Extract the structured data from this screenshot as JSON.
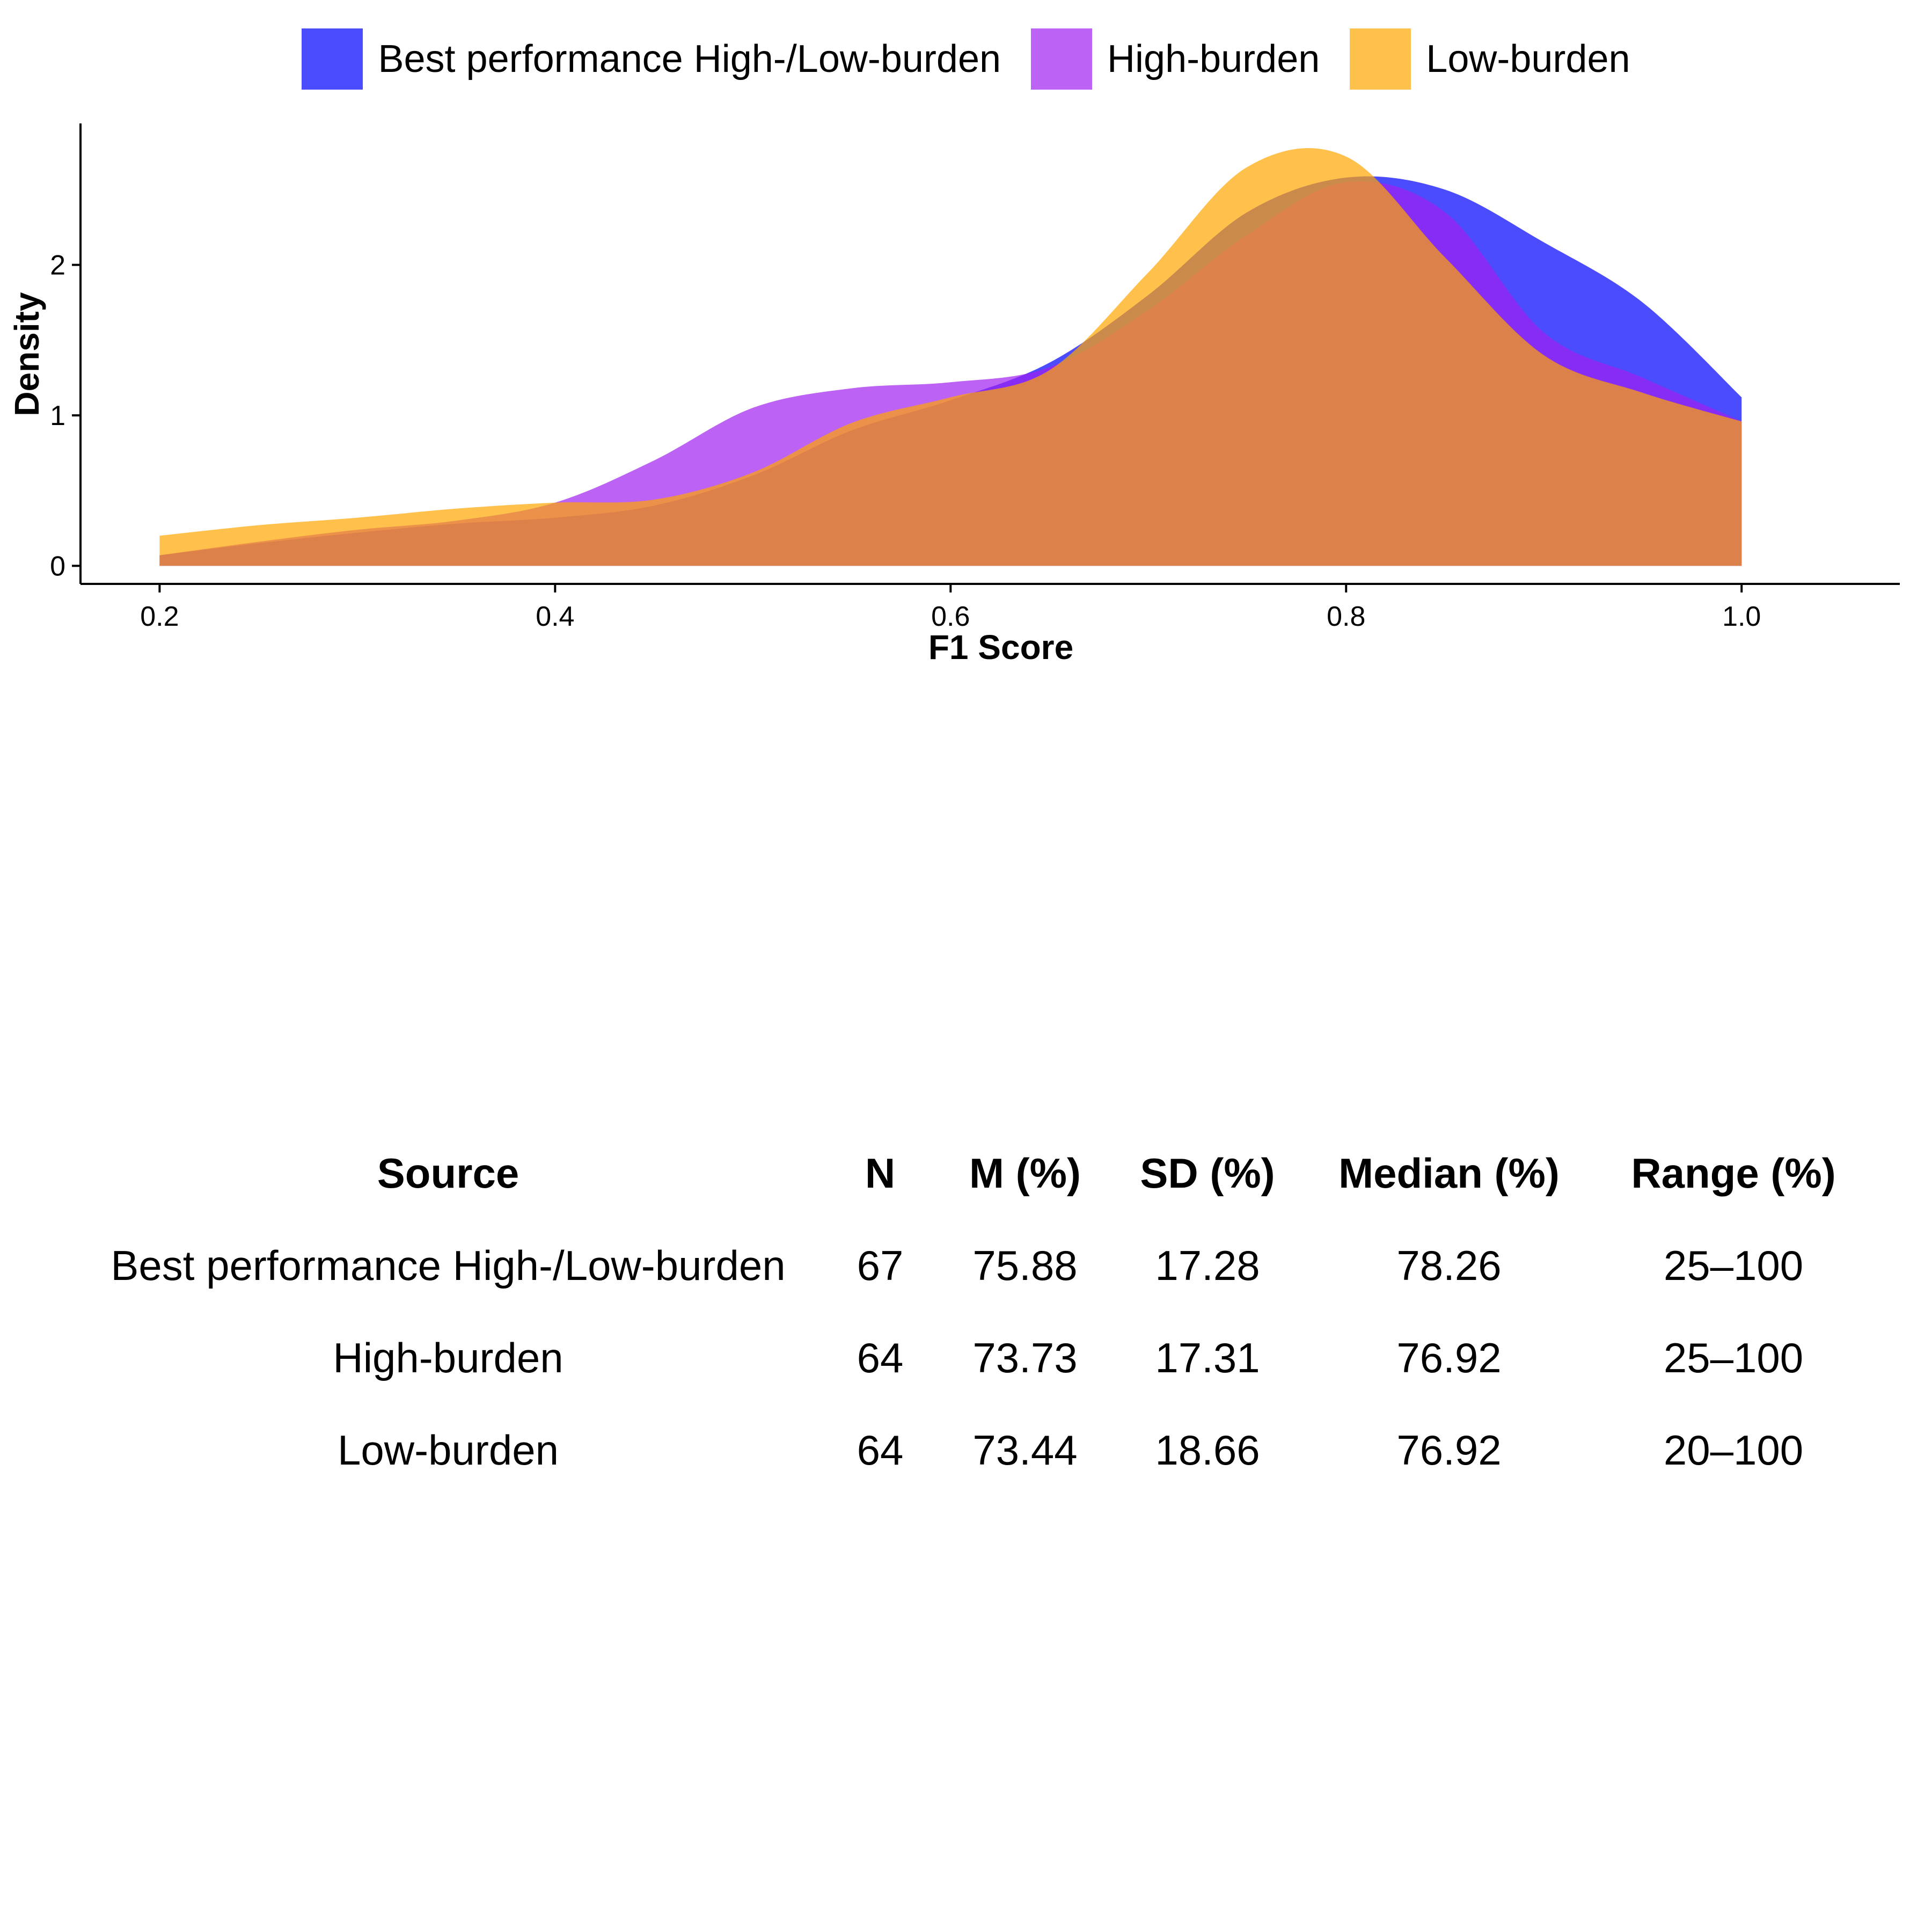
{
  "chart_data": {
    "type": "area",
    "xlabel": "F1 Score",
    "ylabel": "Density",
    "xlim": [
      0.16,
      1.08
    ],
    "ylim": [
      -0.12,
      2.94
    ],
    "x_ticks": [
      0.2,
      0.4,
      0.6,
      0.8,
      1.0
    ],
    "x_tick_labels": [
      "0.2",
      "0.4",
      "0.6",
      "0.8",
      "1.0"
    ],
    "y_ticks": [
      0,
      1,
      2
    ],
    "y_tick_labels": [
      "0",
      "1",
      "2"
    ],
    "grid": false,
    "legend_position": "top",
    "x": [
      0.2,
      0.25,
      0.3,
      0.35,
      0.4,
      0.45,
      0.5,
      0.55,
      0.6,
      0.65,
      0.7,
      0.75,
      0.8,
      0.85,
      0.9,
      0.95,
      1.0
    ],
    "series": [
      {
        "name": "Best performance High-/Low-burden",
        "color": "#0000FF",
        "opacity": 0.7,
        "values": [
          0.07,
          0.15,
          0.22,
          0.28,
          0.32,
          0.4,
          0.6,
          0.9,
          1.1,
          1.35,
          1.8,
          2.35,
          2.58,
          2.5,
          2.15,
          1.75,
          1.12
        ]
      },
      {
        "name": "High-burden",
        "color": "#A020F0",
        "opacity": 0.7,
        "values": [
          0.07,
          0.16,
          0.24,
          0.3,
          0.42,
          0.7,
          1.05,
          1.18,
          1.22,
          1.32,
          1.7,
          2.2,
          2.55,
          2.35,
          1.55,
          1.25,
          0.96
        ]
      },
      {
        "name": "Low-burden",
        "color": "#FFA500",
        "opacity": 0.7,
        "values": [
          0.2,
          0.27,
          0.32,
          0.38,
          0.42,
          0.44,
          0.62,
          0.95,
          1.12,
          1.3,
          1.95,
          2.65,
          2.72,
          2.05,
          1.4,
          1.15,
          0.96
        ]
      }
    ]
  },
  "table": {
    "headers": [
      "Source",
      "N",
      "M (%)",
      "SD (%)",
      "Median (%)",
      "Range (%)"
    ],
    "rows": [
      [
        "Best performance High-/Low-burden",
        "67",
        "75.88",
        "17.28",
        "78.26",
        "25–100"
      ],
      [
        "High-burden",
        "64",
        "73.73",
        "17.31",
        "76.92",
        "25–100"
      ],
      [
        "Low-burden",
        "64",
        "73.44",
        "18.66",
        "76.92",
        "20–100"
      ]
    ]
  }
}
